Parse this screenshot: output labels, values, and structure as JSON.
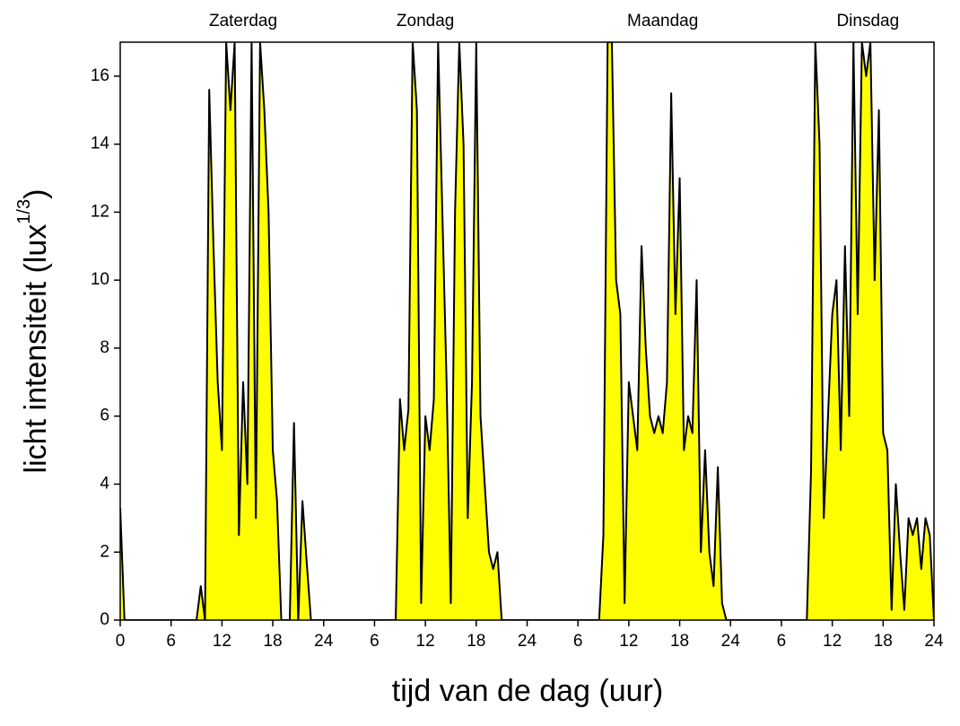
{
  "chart_data": {
    "type": "area",
    "ylabel": {
      "text": "licht intensiteit (lux",
      "sup": "1/3",
      "end": ")"
    },
    "xlabel": "tijd van de dag (uur)",
    "annotations": [
      {
        "text": "Zaterdag",
        "x": 14.5
      },
      {
        "text": "Zondag",
        "x": 36.0
      },
      {
        "text": "Maandag",
        "x": 64.0
      },
      {
        "text": "Dinsdag",
        "x": 88.2
      }
    ],
    "fill_color": "#ffff00",
    "line_color": "#000000",
    "xlim": [
      0,
      96
    ],
    "ylim": [
      0,
      17
    ],
    "xticks": [
      0,
      6,
      12,
      18,
      24,
      {
        "value": 30,
        "label": "6"
      },
      {
        "value": 36,
        "label": "12"
      },
      {
        "value": 42,
        "label": "18"
      },
      {
        "value": 48,
        "label": "24"
      },
      {
        "value": 54,
        "label": "6"
      },
      {
        "value": 60,
        "label": "12"
      },
      {
        "value": 66,
        "label": "18"
      },
      {
        "value": 72,
        "label": "24"
      },
      {
        "value": 78,
        "label": "6"
      },
      {
        "value": 84,
        "label": "12"
      },
      {
        "value": 90,
        "label": "18"
      },
      {
        "value": 96,
        "label": "24"
      }
    ],
    "yticks": [
      0,
      2,
      4,
      6,
      8,
      10,
      12,
      14,
      16
    ],
    "x": [
      0,
      0.5,
      1,
      1.5,
      2,
      2.5,
      3,
      3.5,
      4,
      4.5,
      5,
      5.5,
      6,
      6.5,
      7,
      7.5,
      8,
      8.5,
      9,
      9.5,
      10,
      10.5,
      11,
      11.5,
      12,
      12.5,
      13,
      13.5,
      14,
      14.5,
      15,
      15.5,
      16,
      16.5,
      17,
      17.5,
      18,
      18.5,
      19,
      19.5,
      20,
      20.5,
      21,
      21.5,
      22,
      22.5,
      23,
      23.5,
      24,
      24.5,
      25,
      25.5,
      26,
      26.5,
      27,
      27.5,
      28,
      28.5,
      29,
      29.5,
      30,
      30.5,
      31,
      31.5,
      32,
      32.5,
      33,
      33.5,
      34,
      34.5,
      35,
      35.5,
      36,
      36.5,
      37,
      37.5,
      38,
      38.5,
      39,
      39.5,
      40,
      40.5,
      41,
      41.5,
      42,
      42.5,
      43,
      43.5,
      44,
      44.5,
      45,
      45.5,
      46,
      46.5,
      47,
      47.5,
      48,
      48.5,
      49,
      49.5,
      50,
      50.5,
      51,
      51.5,
      52,
      52.5,
      53,
      53.5,
      54,
      54.5,
      55,
      55.5,
      56,
      56.5,
      57,
      57.5,
      58,
      58.5,
      59,
      59.5,
      60,
      60.5,
      61,
      61.5,
      62,
      62.5,
      63,
      63.5,
      64,
      64.5,
      65,
      65.5,
      66,
      66.5,
      67,
      67.5,
      68,
      68.5,
      69,
      69.5,
      70,
      70.5,
      71,
      71.5,
      72,
      72.5,
      73,
      73.5,
      74,
      74.5,
      75,
      75.5,
      76,
      76.5,
      77,
      77.5,
      78,
      78.5,
      79,
      79.5,
      80,
      80.5,
      81,
      81.5,
      82,
      82.5,
      83,
      83.5,
      84,
      84.5,
      85,
      85.5,
      86,
      86.5,
      87,
      87.5,
      88,
      88.5,
      89,
      89.5,
      90,
      90.5,
      91,
      91.5,
      92,
      92.5,
      93,
      93.5,
      94,
      94.5,
      95,
      95.5,
      96
    ],
    "values": [
      3.3,
      0,
      0,
      0,
      0,
      0,
      0,
      0,
      0,
      0,
      0,
      0,
      0,
      0,
      0,
      0,
      0,
      0,
      0,
      1.0,
      0,
      15.6,
      11,
      7,
      5,
      17,
      15,
      17,
      2.5,
      7,
      4,
      17,
      3,
      17,
      15,
      12,
      5,
      3.5,
      0,
      0,
      0,
      5.8,
      0,
      3.5,
      1.7,
      0,
      0,
      0,
      0,
      0,
      0,
      0,
      0,
      0,
      0,
      0,
      0,
      0,
      0,
      0,
      0,
      0,
      0,
      0,
      0,
      0,
      6.5,
      5,
      6.2,
      17,
      15,
      0.5,
      6,
      5,
      6.5,
      17,
      12,
      7,
      0.5,
      12,
      17,
      14,
      3,
      7,
      17,
      6,
      4,
      2,
      1.5,
      2,
      0,
      0,
      0,
      0,
      0,
      0,
      0,
      0,
      0,
      0,
      0,
      0,
      0,
      0,
      0,
      0,
      0,
      0,
      0,
      0,
      0,
      0,
      0,
      0,
      2.5,
      17,
      17,
      10,
      9,
      0.5,
      7,
      6,
      5,
      11,
      8,
      6,
      5.5,
      6,
      5.5,
      7,
      15.5,
      9,
      13,
      5,
      6,
      5.5,
      10,
      2,
      5,
      2,
      1,
      4.5,
      0.5,
      0,
      0,
      0,
      0,
      0,
      0,
      0,
      0,
      0,
      0,
      0,
      0,
      0,
      0,
      0,
      0,
      0,
      0,
      0,
      0,
      4.4,
      17,
      14,
      3,
      6,
      9,
      10,
      5,
      11,
      6,
      17,
      9,
      17,
      16,
      17,
      10,
      15,
      5.5,
      5,
      0.3,
      4,
      2,
      0.3,
      3,
      2.5,
      3,
      1.5,
      3,
      2.5,
      0
    ]
  }
}
